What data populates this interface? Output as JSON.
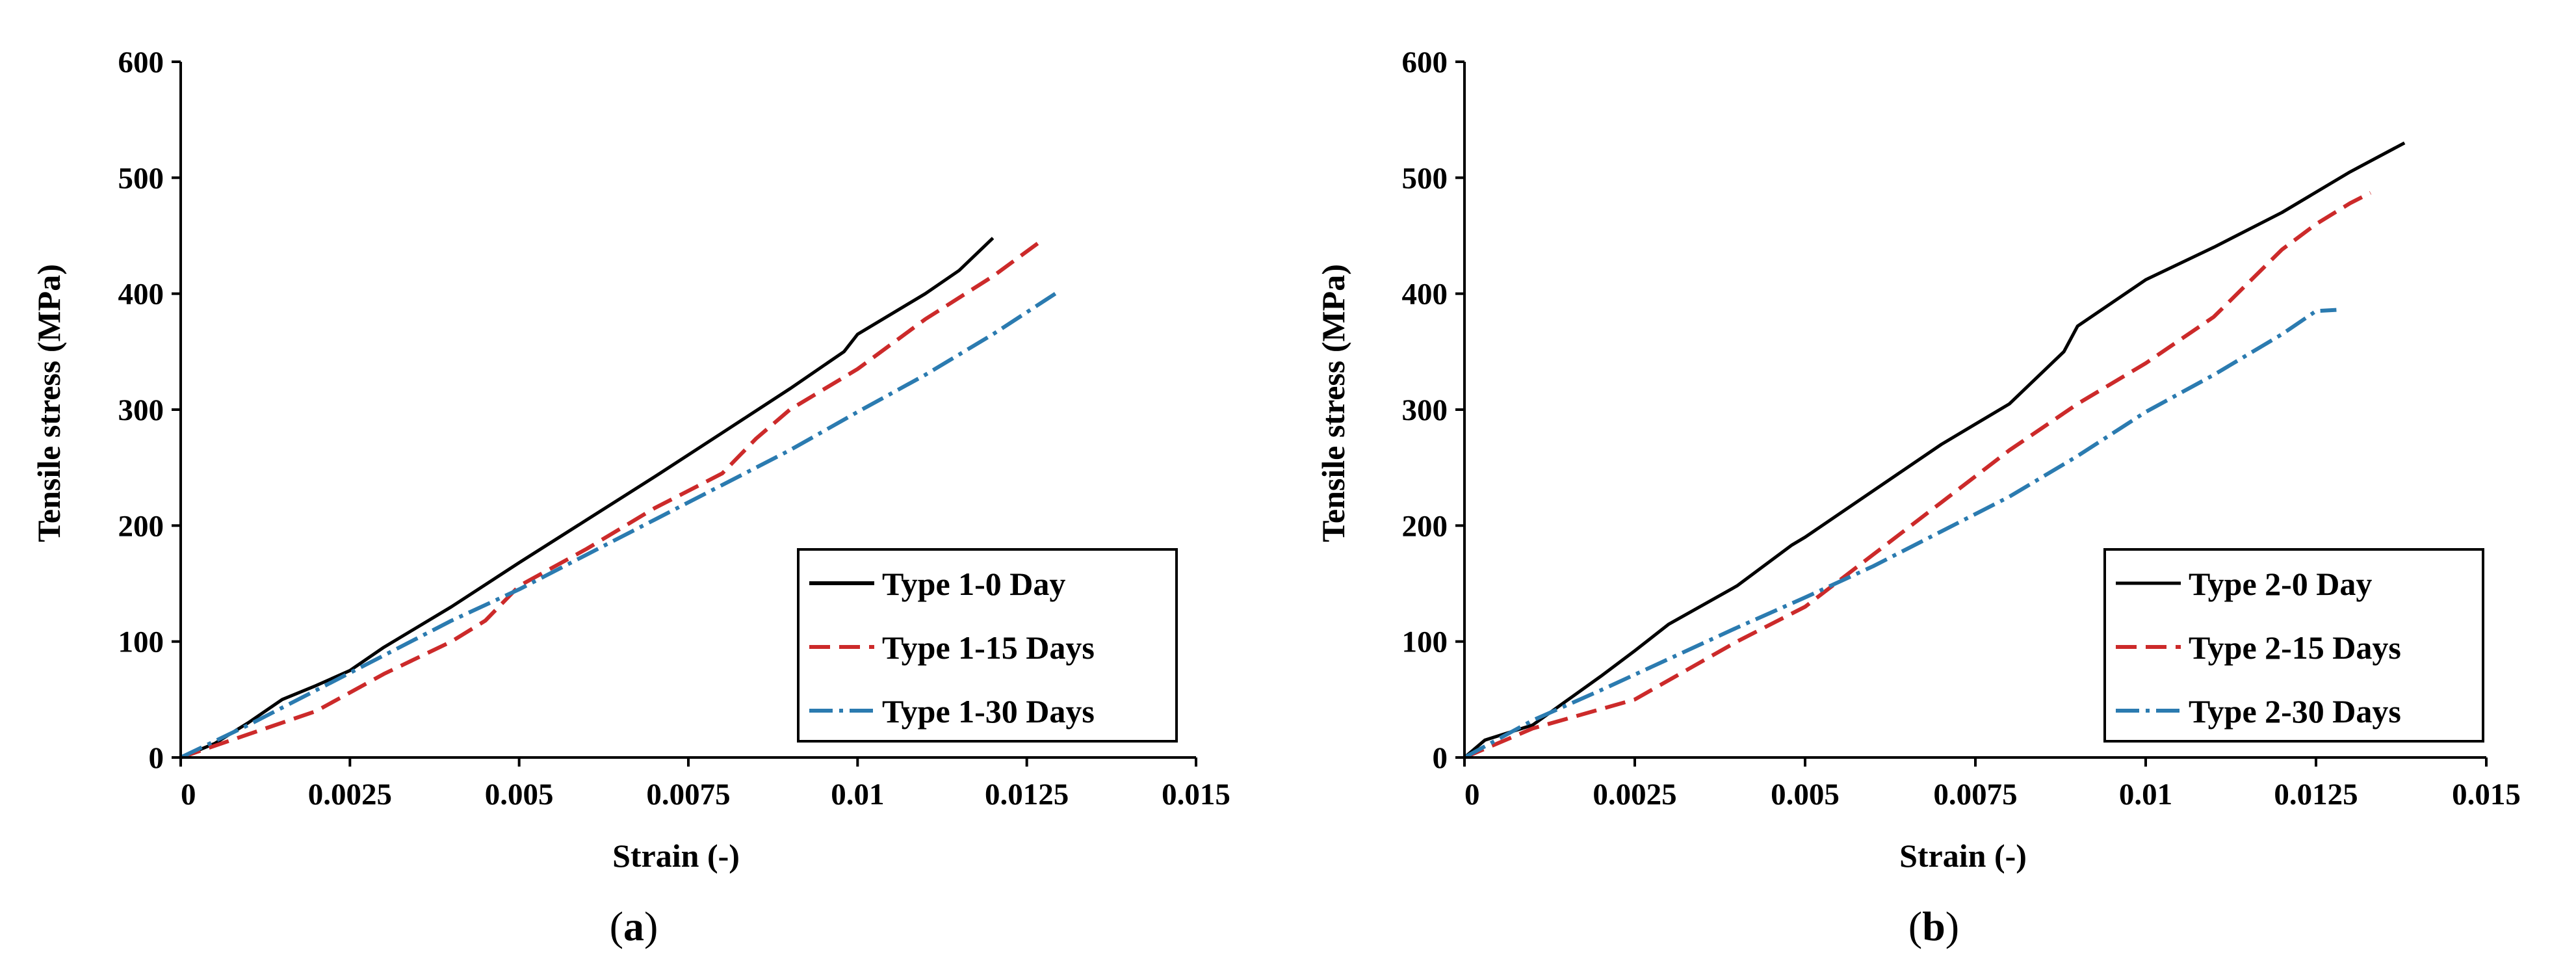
{
  "chart_data": [
    {
      "type": "line",
      "title": "",
      "caption": "a",
      "xlabel": "Strain (-)",
      "ylabel": "Tensile stress (MPa)",
      "xlim": [
        0,
        0.015
      ],
      "ylim": [
        0,
        600
      ],
      "x_ticks": [
        0,
        0.0025,
        0.005,
        0.0075,
        0.01,
        0.0125,
        0.015
      ],
      "x_tick_labels": [
        "0",
        "0.0025",
        "0.005",
        "0.0075",
        "0.01",
        "0.0125",
        "0.015"
      ],
      "y_ticks": [
        0,
        100,
        200,
        300,
        400,
        500,
        600
      ],
      "y_tick_labels": [
        "0",
        "100",
        "200",
        "300",
        "400",
        "500",
        "600"
      ],
      "grid": false,
      "legend_position": "bottom-right",
      "series": [
        {
          "name": "Type 1-0 Day",
          "color": "#000000",
          "style": "solid",
          "points": [
            [
              0,
              0
            ],
            [
              0.0005,
              12
            ],
            [
              0.001,
              30
            ],
            [
              0.0015,
              50
            ],
            [
              0.002,
              62
            ],
            [
              0.0025,
              75
            ],
            [
              0.003,
              95
            ],
            [
              0.004,
              130
            ],
            [
              0.005,
              168
            ],
            [
              0.006,
              205
            ],
            [
              0.007,
              242
            ],
            [
              0.008,
              280
            ],
            [
              0.009,
              318
            ],
            [
              0.0098,
              350
            ],
            [
              0.01,
              365
            ],
            [
              0.011,
              400
            ],
            [
              0.0115,
              420
            ],
            [
              0.012,
              448
            ]
          ]
        },
        {
          "name": "Type 1-15 Days",
          "color": "#cc2a2a",
          "style": "dashed",
          "points": [
            [
              0,
              0
            ],
            [
              0.001,
              20
            ],
            [
              0.002,
              40
            ],
            [
              0.003,
              72
            ],
            [
              0.004,
              100
            ],
            [
              0.0045,
              118
            ],
            [
              0.005,
              148
            ],
            [
              0.006,
              180
            ],
            [
              0.007,
              215
            ],
            [
              0.008,
              245
            ],
            [
              0.0085,
              275
            ],
            [
              0.009,
              300
            ],
            [
              0.01,
              335
            ],
            [
              0.011,
              378
            ],
            [
              0.012,
              415
            ],
            [
              0.0127,
              445
            ]
          ]
        },
        {
          "name": "Type 1-30 Days",
          "color": "#2b7bb0",
          "style": "dashdot",
          "points": [
            [
              0,
              0
            ],
            [
              0.001,
              28
            ],
            [
              0.002,
              58
            ],
            [
              0.003,
              88
            ],
            [
              0.004,
              118
            ],
            [
              0.005,
              145
            ],
            [
              0.006,
              175
            ],
            [
              0.007,
              205
            ],
            [
              0.008,
              235
            ],
            [
              0.009,
              265
            ],
            [
              0.01,
              298
            ],
            [
              0.011,
              330
            ],
            [
              0.012,
              365
            ],
            [
              0.013,
              403
            ]
          ]
        }
      ]
    },
    {
      "type": "line",
      "title": "",
      "caption": "b",
      "xlabel": "Strain (-)",
      "ylabel": "Tensile stress (MPa)",
      "xlim": [
        0,
        0.015
      ],
      "ylim": [
        0,
        600
      ],
      "x_ticks": [
        0,
        0.0025,
        0.005,
        0.0075,
        0.01,
        0.0125,
        0.015
      ],
      "x_tick_labels": [
        "0",
        "0.0025",
        "0.005",
        "0.0075",
        "0.01",
        "0.0125",
        "0.015"
      ],
      "y_ticks": [
        0,
        100,
        200,
        300,
        400,
        500,
        600
      ],
      "y_tick_labels": [
        "0",
        "100",
        "200",
        "300",
        "400",
        "500",
        "600"
      ],
      "grid": false,
      "legend_position": "bottom-right",
      "series": [
        {
          "name": "Type 2-0 Day",
          "color": "#000000",
          "style": "solid",
          "points": [
            [
              0,
              0
            ],
            [
              0.0003,
              15
            ],
            [
              0.001,
              28
            ],
            [
              0.002,
              70
            ],
            [
              0.0025,
              92
            ],
            [
              0.003,
              115
            ],
            [
              0.004,
              148
            ],
            [
              0.0048,
              183
            ],
            [
              0.005,
              190
            ],
            [
              0.006,
              230
            ],
            [
              0.007,
              270
            ],
            [
              0.008,
              305
            ],
            [
              0.0088,
              350
            ],
            [
              0.009,
              372
            ],
            [
              0.01,
              412
            ],
            [
              0.011,
              440
            ],
            [
              0.012,
              470
            ],
            [
              0.013,
              505
            ],
            [
              0.0138,
              530
            ]
          ]
        },
        {
          "name": "Type 2-15 Days",
          "color": "#cc2a2a",
          "style": "dashed",
          "points": [
            [
              0,
              0
            ],
            [
              0.001,
              25
            ],
            [
              0.0025,
              50
            ],
            [
              0.004,
              100
            ],
            [
              0.005,
              130
            ],
            [
              0.006,
              175
            ],
            [
              0.007,
              220
            ],
            [
              0.008,
              265
            ],
            [
              0.009,
              305
            ],
            [
              0.01,
              340
            ],
            [
              0.011,
              380
            ],
            [
              0.012,
              438
            ],
            [
              0.0125,
              460
            ],
            [
              0.013,
              478
            ],
            [
              0.0133,
              487
            ]
          ]
        },
        {
          "name": "Type 2-30 Days",
          "color": "#2b7bb0",
          "style": "dashdot",
          "points": [
            [
              0,
              0
            ],
            [
              0.001,
              32
            ],
            [
              0.002,
              58
            ],
            [
              0.003,
              85
            ],
            [
              0.004,
              112
            ],
            [
              0.005,
              138
            ],
            [
              0.006,
              165
            ],
            [
              0.007,
              195
            ],
            [
              0.008,
              225
            ],
            [
              0.009,
              260
            ],
            [
              0.01,
              298
            ],
            [
              0.011,
              330
            ],
            [
              0.012,
              365
            ],
            [
              0.0125,
              385
            ],
            [
              0.0128,
              386
            ]
          ]
        }
      ]
    }
  ]
}
